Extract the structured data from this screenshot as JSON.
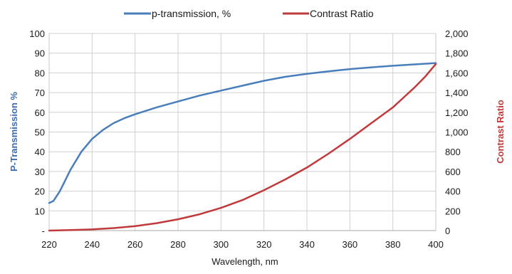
{
  "chart_data": {
    "type": "line",
    "xlabel": "Wavelength, nm",
    "ylabel_left": "P-Transmission %",
    "ylabel_right": "Contrast Ratio",
    "xlim": [
      220,
      400
    ],
    "ylim_left": [
      0,
      100
    ],
    "ylim_right": [
      0,
      2000
    ],
    "grid": true,
    "legend_position": "top",
    "x_ticks": [
      "220",
      "240",
      "260",
      "280",
      "300",
      "320",
      "340",
      "360",
      "380",
      "400"
    ],
    "y_left_ticks": [
      "-",
      "10",
      "20",
      "30",
      "40",
      "50",
      "60",
      "70",
      "80",
      "90",
      "100"
    ],
    "y_right_ticks": [
      "0",
      "200",
      "400",
      "600",
      "800",
      "1,000",
      "1,200",
      "1,400",
      "1,600",
      "1,800",
      "2,000"
    ],
    "series": [
      {
        "name": "p-transmission, %",
        "axis": "left",
        "color": "#4a7ebb",
        "x": [
          220,
          222,
          225,
          230,
          235,
          240,
          245,
          250,
          255,
          260,
          270,
          280,
          290,
          300,
          310,
          320,
          330,
          340,
          350,
          360,
          370,
          380,
          390,
          400
        ],
        "y": [
          14,
          15,
          20,
          31,
          40,
          46.5,
          51,
          54.5,
          57,
          59,
          62.5,
          65.5,
          68.5,
          71,
          73.5,
          76,
          78,
          79.5,
          80.8,
          81.9,
          82.8,
          83.6,
          84.3,
          85
        ]
      },
      {
        "name": "Contrast Ratio",
        "axis": "right",
        "color": "#c0393b",
        "x": [
          220,
          230,
          240,
          250,
          260,
          270,
          280,
          290,
          300,
          310,
          320,
          330,
          340,
          350,
          360,
          370,
          380,
          385,
          390,
          395,
          400
        ],
        "y": [
          0,
          5,
          12,
          25,
          45,
          75,
          115,
          165,
          230,
          310,
          410,
          520,
          640,
          780,
          930,
          1090,
          1250,
          1350,
          1450,
          1560,
          1690
        ]
      }
    ]
  }
}
